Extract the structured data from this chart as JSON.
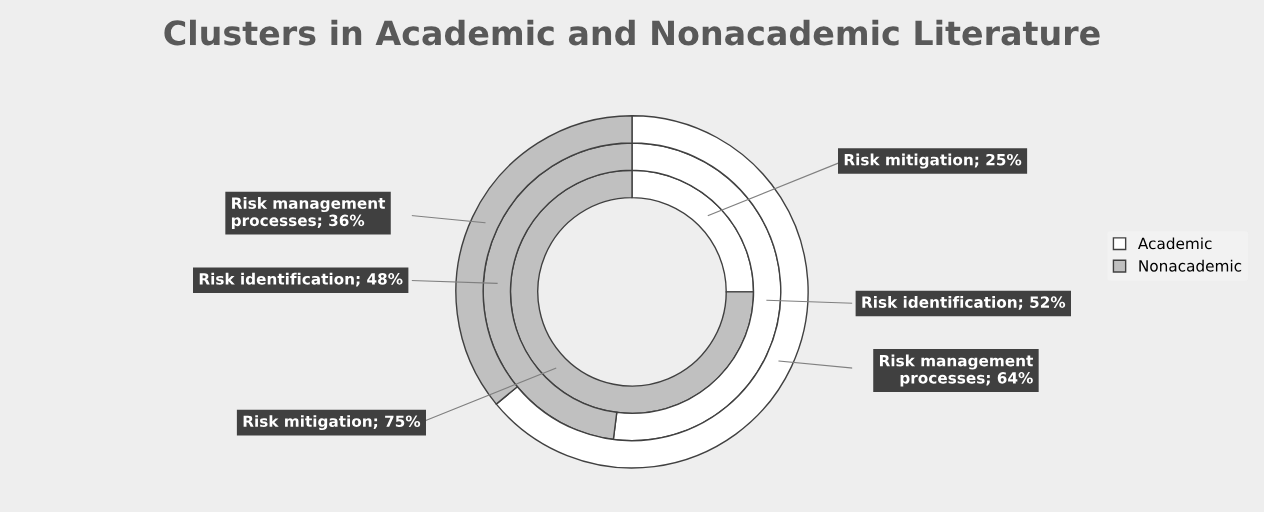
{
  "chart_data": {
    "type": "donut",
    "title": "Clusters in Academic and Nonacademic Literature",
    "categories": [
      "Academic",
      "Nonacademic"
    ],
    "colors": [
      "#ffffff",
      "#c0c0c0"
    ],
    "legend": "right",
    "series": [
      {
        "values": [
          25,
          75
        ],
        "value_labels": [
          "Risk mitigation; 25%",
          "Risk mitigation; 75%"
        ]
      },
      {
        "values": [
          52,
          48
        ],
        "value_labels": [
          "Risk identification; 52%",
          "Risk identification; 48%"
        ]
      },
      {
        "values": [
          64,
          36
        ],
        "value_labels": [
          "Risk management\nprocesses; 64%",
          "Risk management\nprocesses; 36%"
        ]
      }
    ]
  }
}
